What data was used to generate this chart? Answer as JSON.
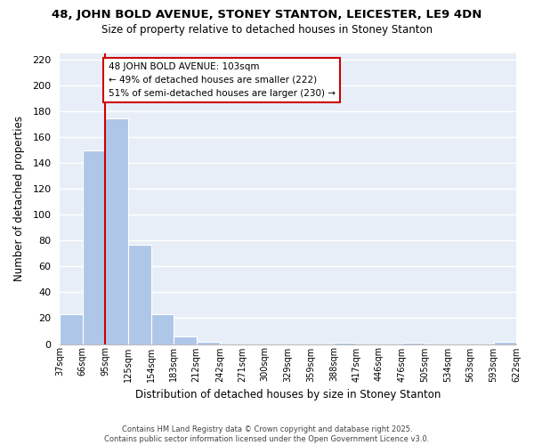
{
  "title": "48, JOHN BOLD AVENUE, STONEY STANTON, LEICESTER, LE9 4DN",
  "subtitle": "Size of property relative to detached houses in Stoney Stanton",
  "xlabel": "Distribution of detached houses by size in Stoney Stanton",
  "ylabel": "Number of detached properties",
  "bar_color": "#aec6e8",
  "bins": [
    37,
    66,
    95,
    125,
    154,
    183,
    212,
    242,
    271,
    300,
    329,
    359,
    388,
    417,
    446,
    476,
    505,
    534,
    563,
    593,
    622
  ],
  "bin_labels": [
    "37sqm",
    "66sqm",
    "95sqm",
    "125sqm",
    "154sqm",
    "183sqm",
    "212sqm",
    "242sqm",
    "271sqm",
    "300sqm",
    "329sqm",
    "359sqm",
    "388sqm",
    "417sqm",
    "446sqm",
    "476sqm",
    "505sqm",
    "534sqm",
    "563sqm",
    "593sqm",
    "622sqm"
  ],
  "counts": [
    23,
    150,
    175,
    77,
    23,
    6,
    2,
    0,
    0,
    0,
    0,
    0,
    1,
    0,
    0,
    1,
    0,
    0,
    0,
    2
  ],
  "vline_x": 95,
  "annotation_line1": "48 JOHN BOLD AVENUE: 103sqm",
  "annotation_line2": "← 49% of detached houses are smaller (222)",
  "annotation_line3": "51% of semi-detached houses are larger (230) →",
  "vline_color": "#cc0000",
  "annotation_box_edge": "#cc0000",
  "annotation_box_face": "#ffffff",
  "ylim": [
    0,
    225
  ],
  "yticks": [
    0,
    20,
    40,
    60,
    80,
    100,
    120,
    140,
    160,
    180,
    200,
    220
  ],
  "bg_color": "#e8eef7",
  "footer_line1": "Contains HM Land Registry data © Crown copyright and database right 2025.",
  "footer_line2": "Contains public sector information licensed under the Open Government Licence v3.0."
}
